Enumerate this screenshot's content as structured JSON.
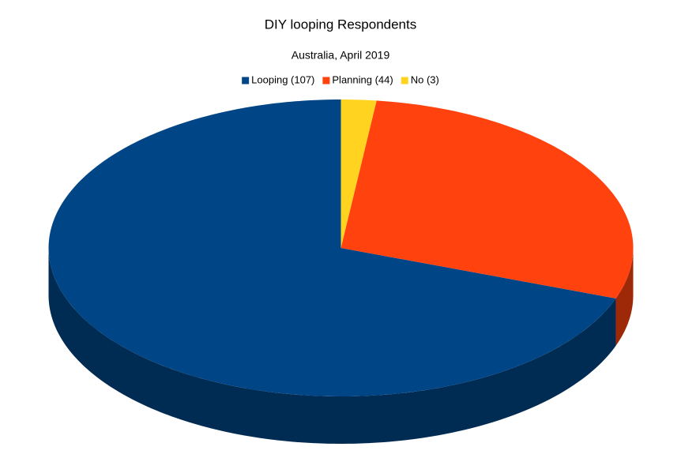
{
  "chart_data": {
    "type": "pie",
    "title": "DIY looping Respondents",
    "subtitle": "Australia, April 2019",
    "categories": [
      "Looping (107)",
      "Planning (44)",
      "No (3)"
    ],
    "values": [
      107,
      44,
      3
    ],
    "colors": [
      "#004586",
      "#ff420e",
      "#ffd320"
    ],
    "legend": "top"
  }
}
